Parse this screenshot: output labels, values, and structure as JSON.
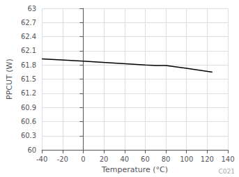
{
  "chart_data": {
    "type": "line",
    "xlabel": "Temperature (°C)",
    "ylabel": "PPCUT (W)",
    "annotation": "C021",
    "x": [
      -40,
      -15,
      0,
      30,
      60,
      70,
      80,
      100,
      125
    ],
    "values": [
      61.93,
      61.9,
      61.88,
      61.84,
      61.8,
      61.79,
      61.79,
      61.73,
      61.65
    ],
    "color": "#000000",
    "xlim": [
      -40,
      140
    ],
    "ylim": [
      60,
      63
    ],
    "xticks": [
      -40,
      -20,
      0,
      20,
      40,
      60,
      80,
      100,
      120,
      140
    ],
    "yticks": [
      60,
      60.3,
      60.6,
      60.9,
      61.2,
      61.5,
      61.8,
      62.1,
      62.4,
      62.7,
      63
    ],
    "grid": true
  }
}
